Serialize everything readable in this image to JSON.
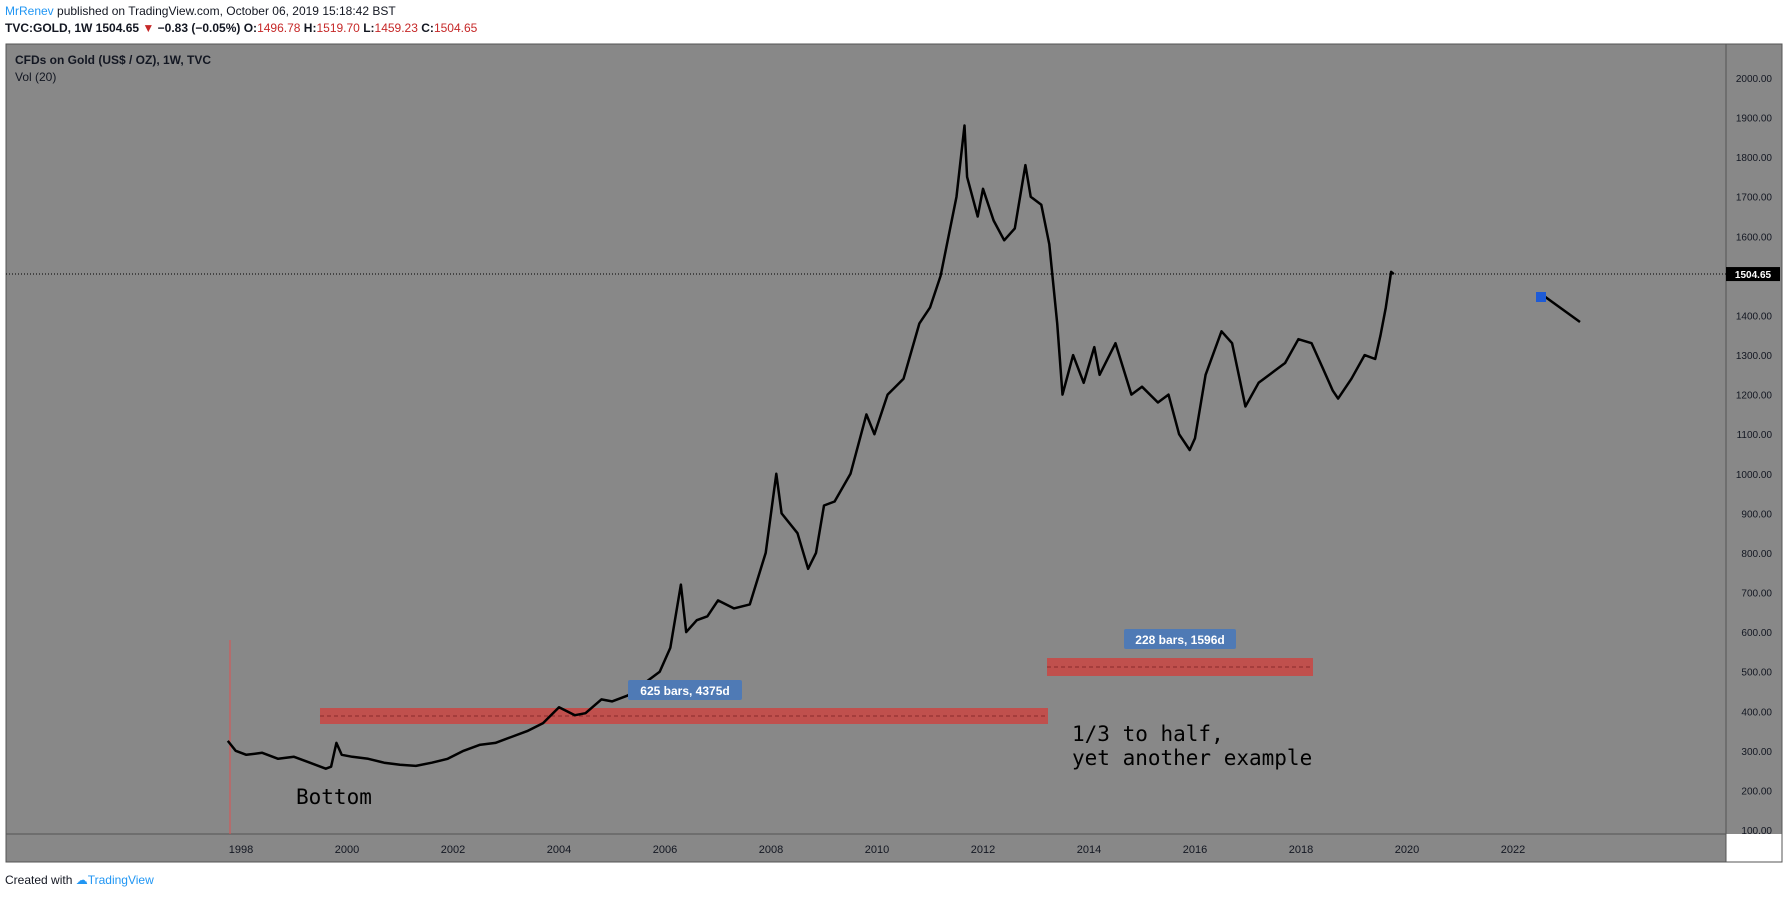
{
  "header": {
    "author": "MrRenev",
    "published": "published on TradingView.com, October 06, 2019 15:18:42 BST",
    "symbol": "TVC:GOLD, 1W",
    "last": "1504.65",
    "change": "−0.83 (−0.05%)",
    "o_label": "O:",
    "o": "1496.78",
    "h_label": "H:",
    "h": "1519.70",
    "l_label": "L:",
    "l": "1459.23",
    "c_label": "C:",
    "c": "1504.65"
  },
  "legend": {
    "title": "CFDs on Gold (US$ / OZ), 1W, TVC",
    "indicator": "Vol (20)"
  },
  "footer": {
    "created_with": "Created with",
    "brand": "TradingView"
  },
  "colors": {
    "background": "#888888",
    "line": "#000000",
    "range_box": "#c0504d",
    "label_box": "#4f7ab5",
    "price_tag": "#000000",
    "down": "#c62828"
  },
  "annotations": {
    "bottom": "Bottom",
    "note_line1": "1/3 to half,",
    "note_line2": "yet another example",
    "range1_label": "625 bars, 4375d",
    "range2_label": "228 bars, 1596d"
  },
  "chart_data": {
    "type": "line",
    "title": "CFDs on Gold (US$ / OZ), 1W, TVC",
    "x_ticks": [
      "1998",
      "2000",
      "2002",
      "2004",
      "2006",
      "2008",
      "2010",
      "2012",
      "2014",
      "2016",
      "2018",
      "2020",
      "2022"
    ],
    "y_ticks": [
      "100.00",
      "200.00",
      "300.00",
      "400.00",
      "500.00",
      "600.00",
      "700.00",
      "800.00",
      "900.00",
      "1000.00",
      "1100.00",
      "1200.00",
      "1300.00",
      "1400.00",
      "1500.00",
      "1600.00",
      "1700.00",
      "1800.00",
      "1900.00",
      "2000.00"
    ],
    "ylim": [
      100,
      2000
    ],
    "xlim": [
      1997.7,
      2025.9
    ],
    "last_price": "1504.65",
    "series": [
      {
        "x": [
          1997.75,
          1997.9,
          1998.1,
          1998.4,
          1998.7,
          1999.0,
          1999.3,
          1999.6,
          1999.7,
          1999.8,
          1999.9,
          2000.1,
          2000.4,
          2000.7,
          2001.0,
          2001.3,
          2001.6,
          2001.9,
          2002.2,
          2002.5,
          2002.8,
          2003.1,
          2003.4,
          2003.7,
          2004.0,
          2004.3,
          2004.5,
          2004.8,
          2005.0,
          2005.3,
          2005.6,
          2005.9,
          2006.1,
          2006.3,
          2006.4,
          2006.6,
          2006.8,
          2007.0,
          2007.3,
          2007.6,
          2007.9,
          2008.1,
          2008.2,
          2008.5,
          2008.7,
          2008.85,
          2009.0,
          2009.2,
          2009.5,
          2009.8,
          2009.95,
          2010.2,
          2010.5,
          2010.8,
          2011.0,
          2011.2,
          2011.5,
          2011.65,
          2011.7,
          2011.9,
          2012.0,
          2012.2,
          2012.4,
          2012.6,
          2012.8,
          2012.9,
          2013.1,
          2013.25,
          2013.4,
          2013.5,
          2013.7,
          2013.9,
          2014.1,
          2014.2,
          2014.5,
          2014.8,
          2015.0,
          2015.3,
          2015.5,
          2015.7,
          2015.9,
          2016.0,
          2016.2,
          2016.5,
          2016.7,
          2016.95,
          2017.2,
          2017.5,
          2017.7,
          2017.95,
          2018.2,
          2018.4,
          2018.6,
          2018.7,
          2018.95,
          2019.2,
          2019.4,
          2019.5,
          2019.6,
          2019.7,
          2019.75
        ],
        "y": [
          325,
          300,
          290,
          295,
          280,
          285,
          270,
          255,
          260,
          320,
          290,
          285,
          280,
          270,
          265,
          262,
          270,
          280,
          300,
          315,
          320,
          335,
          350,
          370,
          410,
          390,
          395,
          430,
          425,
          440,
          470,
          500,
          560,
          720,
          600,
          630,
          640,
          680,
          660,
          670,
          800,
          1000,
          900,
          850,
          760,
          800,
          920,
          930,
          1000,
          1150,
          1100,
          1200,
          1240,
          1380,
          1420,
          1500,
          1700,
          1880,
          1750,
          1650,
          1720,
          1640,
          1590,
          1620,
          1780,
          1700,
          1680,
          1580,
          1380,
          1200,
          1300,
          1230,
          1320,
          1250,
          1330,
          1200,
          1220,
          1180,
          1200,
          1100,
          1060,
          1090,
          1250,
          1360,
          1330,
          1170,
          1230,
          1260,
          1280,
          1340,
          1330,
          1270,
          1210,
          1190,
          1240,
          1300,
          1290,
          1350,
          1420,
          1510,
          1504.65
        ]
      }
    ]
  }
}
